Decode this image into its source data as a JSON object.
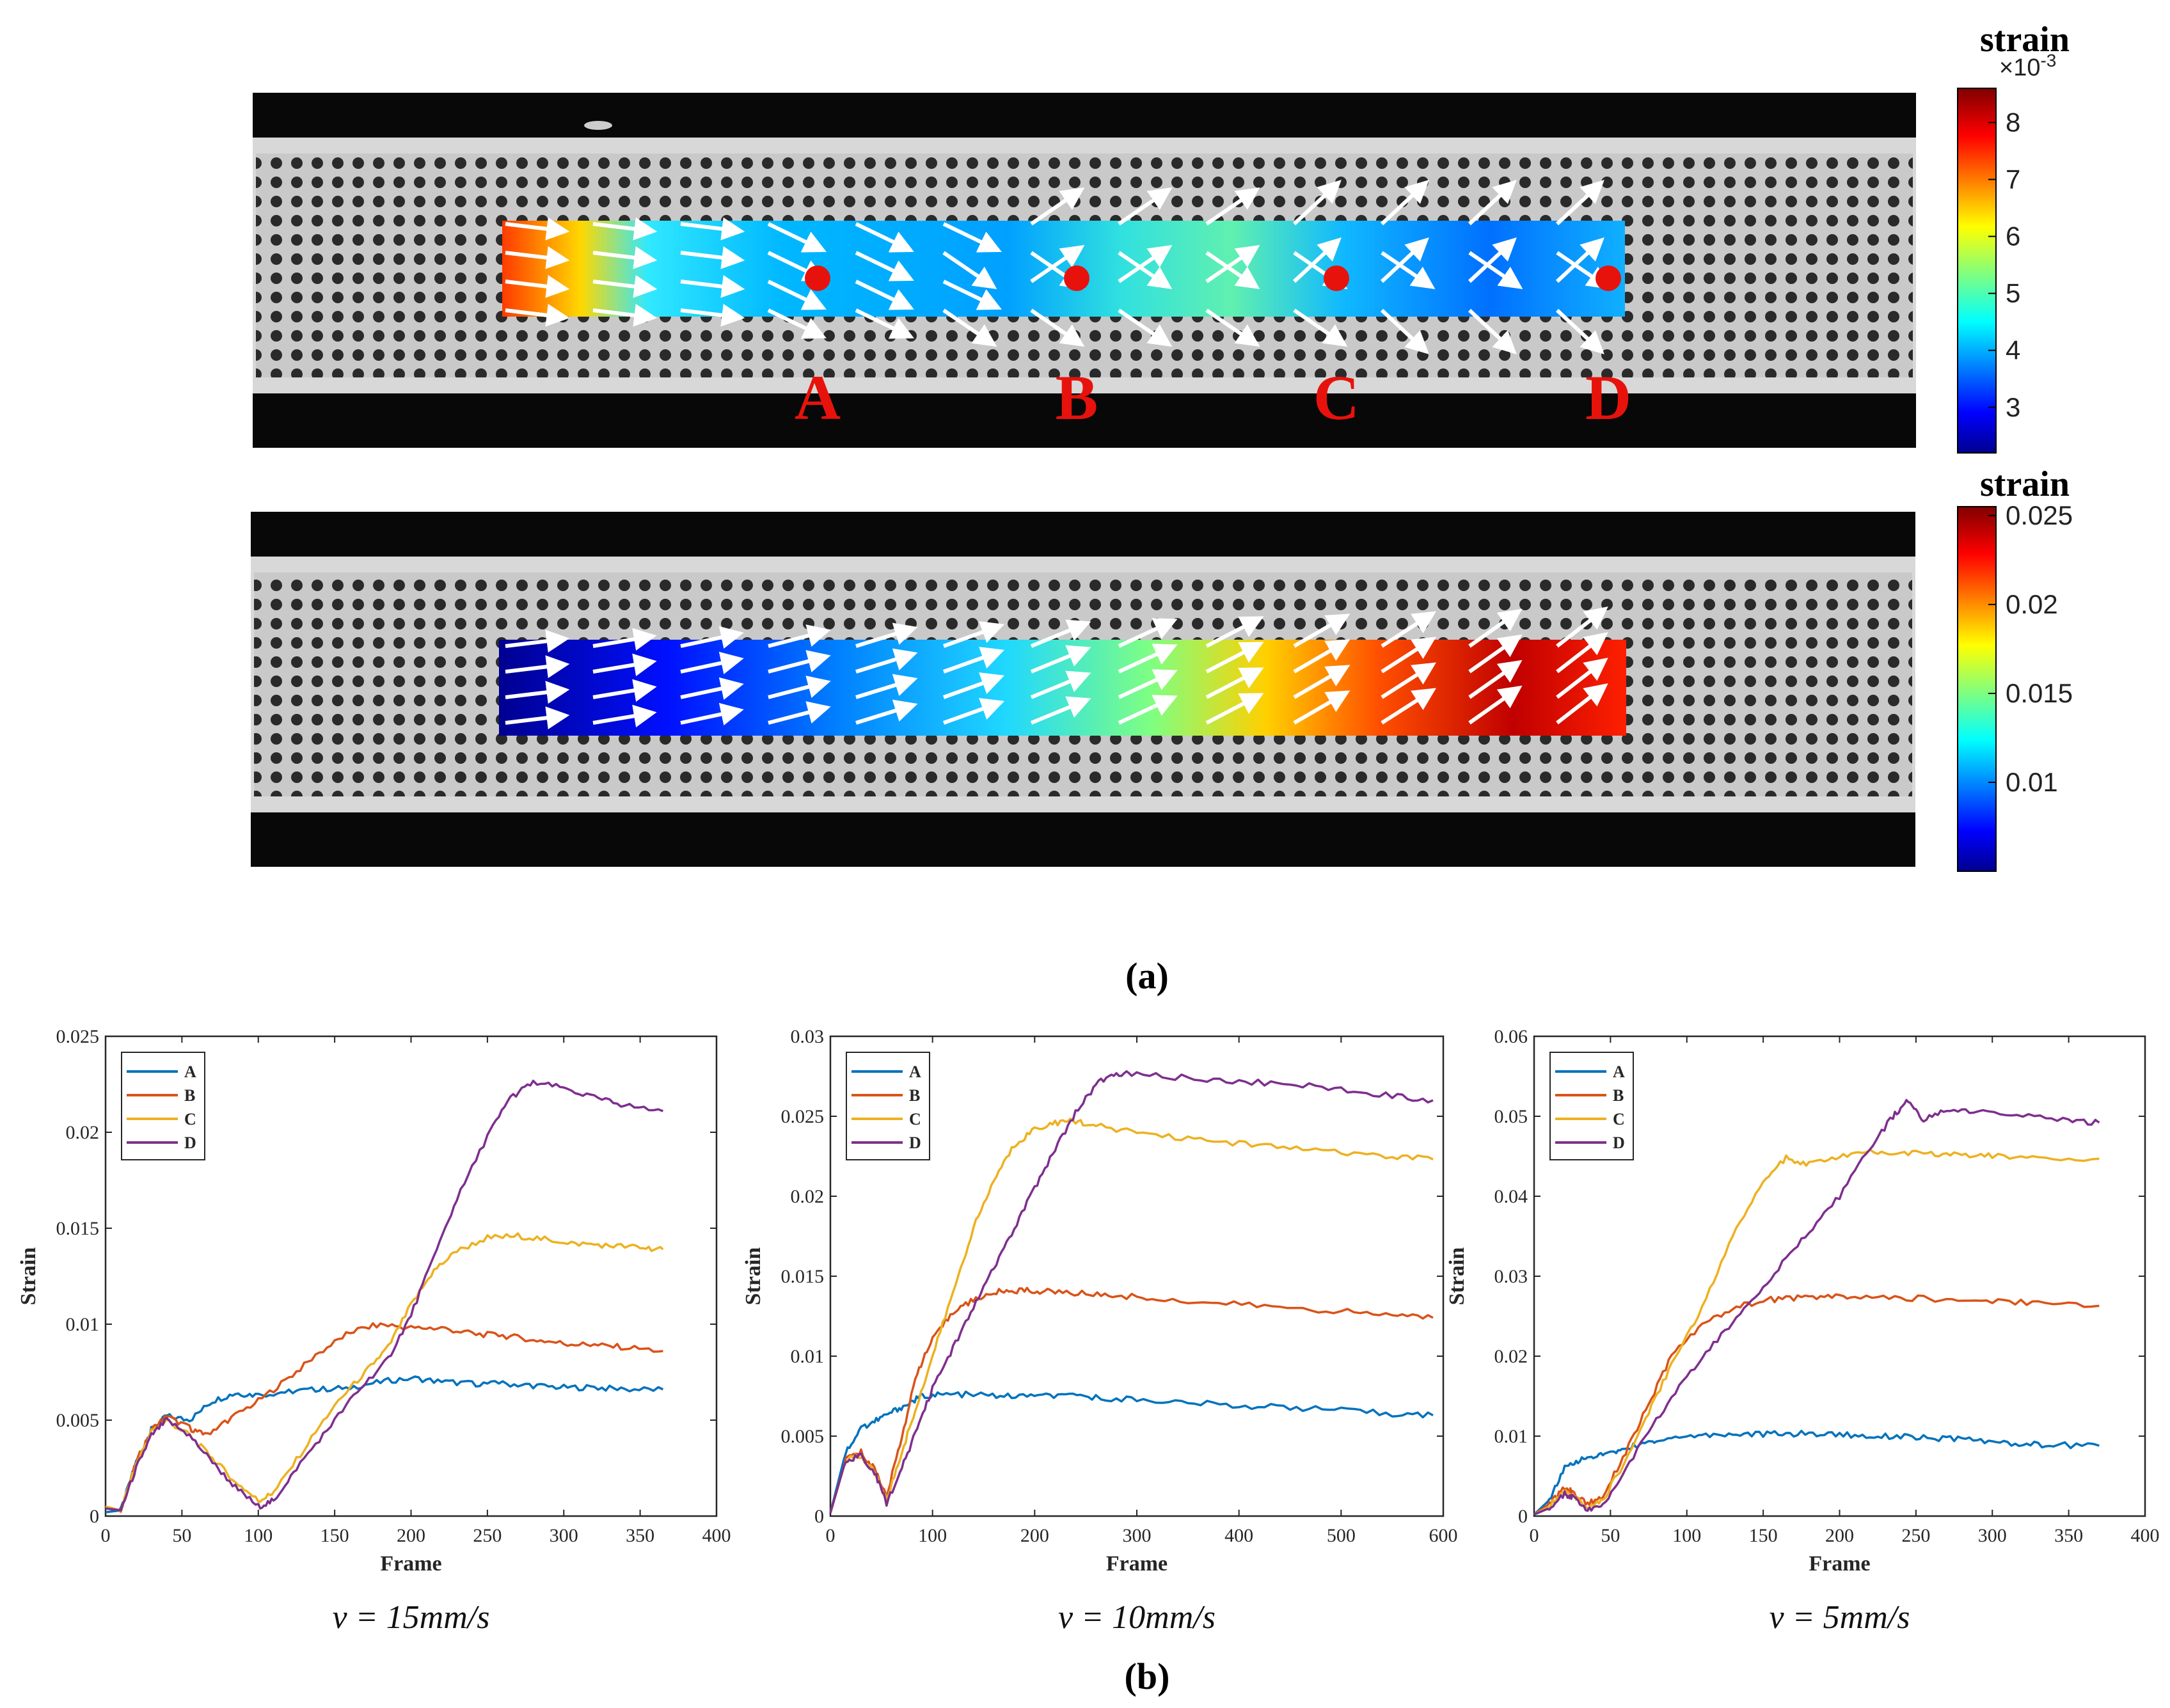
{
  "figure": {
    "panel_a_label": "(a)",
    "panel_b_label": "(b)"
  },
  "maps": [
    {
      "colorbar_title": "strain",
      "colorbar_exponent": "×10",
      "colorbar_exponent_power": "-3",
      "colorbar_ticks": [
        "3",
        "4",
        "5",
        "6",
        "7",
        "8"
      ],
      "colorbar_range": [
        2.2,
        8.6
      ],
      "colorbar_tick_values": [
        3,
        4,
        5,
        6,
        7,
        8
      ],
      "point_labels": [
        "A",
        "B",
        "C",
        "D"
      ]
    },
    {
      "colorbar_title": "strain",
      "colorbar_ticks": [
        "0.01",
        "0.015",
        "0.02",
        "0.025"
      ],
      "colorbar_range": [
        0.005,
        0.0255
      ],
      "colorbar_tick_values": [
        0.01,
        0.015,
        0.02,
        0.025
      ]
    }
  ],
  "colors": {
    "A": "#0072BD",
    "B": "#D95319",
    "C": "#EDB120",
    "D": "#7E2F8E",
    "marker": "#e8120c"
  },
  "chart_data": [
    {
      "type": "line",
      "caption": "v = 15mm/s",
      "xlabel": "Frame",
      "ylabel": "Strain",
      "xlim": [
        0,
        400
      ],
      "ylim": [
        0,
        0.025
      ],
      "xticks": [
        "0",
        "50",
        "100",
        "150",
        "200",
        "250",
        "300",
        "350",
        "400"
      ],
      "yticks": [
        "0",
        "0.005",
        "0.01",
        "0.015",
        "0.02",
        "0.025"
      ],
      "xtick_values": [
        0,
        50,
        100,
        150,
        200,
        250,
        300,
        350,
        400
      ],
      "ytick_values": [
        0,
        0.005,
        0.01,
        0.015,
        0.02,
        0.025
      ],
      "legend": [
        "A",
        "B",
        "C",
        "D"
      ],
      "series": [
        {
          "name": "A",
          "x": [
            0,
            10,
            20,
            30,
            40,
            55,
            70,
            85,
            100,
            120,
            140,
            160,
            180,
            200,
            220,
            240,
            260,
            280,
            300,
            320,
            340,
            365
          ],
          "y": [
            0.0002,
            0.0003,
            0.0028,
            0.0045,
            0.0052,
            0.005,
            0.006,
            0.0064,
            0.0063,
            0.0065,
            0.0066,
            0.0067,
            0.007,
            0.0072,
            0.007,
            0.0069,
            0.0069,
            0.0068,
            0.0067,
            0.0067,
            0.0066,
            0.0066
          ]
        },
        {
          "name": "B",
          "x": [
            0,
            10,
            20,
            30,
            40,
            55,
            65,
            80,
            100,
            120,
            140,
            160,
            180,
            200,
            220,
            240,
            260,
            280,
            300,
            320,
            340,
            365
          ],
          "y": [
            0.0004,
            0.0003,
            0.0028,
            0.0045,
            0.0052,
            0.0046,
            0.0042,
            0.005,
            0.006,
            0.0072,
            0.0085,
            0.0096,
            0.01,
            0.0098,
            0.0098,
            0.0095,
            0.0094,
            0.0092,
            0.009,
            0.0089,
            0.0088,
            0.0086
          ]
        },
        {
          "name": "C",
          "x": [
            0,
            10,
            20,
            30,
            40,
            55,
            70,
            85,
            100,
            110,
            130,
            150,
            170,
            185,
            200,
            215,
            230,
            250,
            270,
            290,
            310,
            330,
            350,
            365
          ],
          "y": [
            0.0005,
            0.0003,
            0.0027,
            0.0044,
            0.005,
            0.0042,
            0.003,
            0.0018,
            0.0008,
            0.0012,
            0.0035,
            0.0058,
            0.0075,
            0.0088,
            0.011,
            0.0128,
            0.0138,
            0.0145,
            0.0146,
            0.0144,
            0.0142,
            0.0141,
            0.014,
            0.0139
          ]
        },
        {
          "name": "D",
          "x": [
            0,
            10,
            20,
            30,
            40,
            55,
            70,
            85,
            100,
            110,
            125,
            145,
            165,
            185,
            200,
            215,
            230,
            250,
            265,
            280,
            300,
            320,
            340,
            365
          ],
          "y": [
            0.0004,
            0.0003,
            0.0025,
            0.0042,
            0.005,
            0.0042,
            0.0028,
            0.0015,
            0.0005,
            0.0008,
            0.0025,
            0.0045,
            0.0065,
            0.0082,
            0.0105,
            0.0135,
            0.0165,
            0.0198,
            0.0218,
            0.0226,
            0.0223,
            0.0218,
            0.0214,
            0.0211
          ]
        }
      ]
    },
    {
      "type": "line",
      "caption": "v = 10mm/s",
      "xlabel": "Frame",
      "ylabel": "Strain",
      "xlim": [
        0,
        600
      ],
      "ylim": [
        0,
        0.03
      ],
      "xticks": [
        "0",
        "100",
        "200",
        "300",
        "400",
        "500",
        "600"
      ],
      "yticks": [
        "0",
        "0.005",
        "0.01",
        "0.015",
        "0.02",
        "0.025",
        "0.03"
      ],
      "xtick_values": [
        0,
        100,
        200,
        300,
        400,
        500,
        600
      ],
      "ytick_values": [
        0,
        0.005,
        0.01,
        0.015,
        0.02,
        0.025,
        0.03
      ],
      "legend": [
        "A",
        "B",
        "C",
        "D"
      ],
      "series": [
        {
          "name": "A",
          "x": [
            0,
            15,
            30,
            45,
            60,
            75,
            90,
            110,
            140,
            170,
            200,
            230,
            260,
            300,
            350,
            400,
            450,
            500,
            550,
            590
          ],
          "y": [
            0.0002,
            0.004,
            0.0055,
            0.006,
            0.0065,
            0.007,
            0.0075,
            0.0076,
            0.0076,
            0.0075,
            0.0075,
            0.0075,
            0.0074,
            0.0073,
            0.0071,
            0.0069,
            0.0068,
            0.0066,
            0.0064,
            0.0063
          ]
        },
        {
          "name": "B",
          "x": [
            0,
            15,
            30,
            45,
            55,
            70,
            85,
            100,
            120,
            140,
            160,
            180,
            200,
            220,
            250,
            280,
            320,
            380,
            440,
            500,
            550,
            590
          ],
          "y": [
            0.0002,
            0.0035,
            0.004,
            0.0028,
            0.0012,
            0.005,
            0.009,
            0.011,
            0.0128,
            0.0135,
            0.014,
            0.0141,
            0.0141,
            0.014,
            0.0139,
            0.0138,
            0.0136,
            0.0133,
            0.0131,
            0.0128,
            0.0126,
            0.0124
          ]
        },
        {
          "name": "C",
          "x": [
            0,
            15,
            30,
            45,
            55,
            70,
            85,
            100,
            120,
            140,
            160,
            180,
            200,
            220,
            240,
            260,
            300,
            350,
            400,
            450,
            500,
            550,
            590
          ],
          "y": [
            0.0002,
            0.0035,
            0.0038,
            0.0025,
            0.001,
            0.004,
            0.007,
            0.01,
            0.014,
            0.018,
            0.021,
            0.0232,
            0.0242,
            0.0246,
            0.0247,
            0.0244,
            0.024,
            0.0236,
            0.0233,
            0.023,
            0.0227,
            0.0225,
            0.0223
          ]
        },
        {
          "name": "D",
          "x": [
            0,
            15,
            30,
            45,
            55,
            70,
            85,
            100,
            120,
            140,
            160,
            180,
            200,
            220,
            240,
            260,
            280,
            300,
            350,
            400,
            450,
            500,
            550,
            590
          ],
          "y": [
            0.0002,
            0.0035,
            0.0038,
            0.0025,
            0.0008,
            0.003,
            0.0055,
            0.008,
            0.0105,
            0.013,
            0.0155,
            0.018,
            0.0205,
            0.023,
            0.0252,
            0.027,
            0.0277,
            0.0276,
            0.0274,
            0.0272,
            0.027,
            0.0267,
            0.0263,
            0.026
          ]
        }
      ]
    },
    {
      "type": "line",
      "caption": "v = 5mm/s",
      "xlabel": "Frame",
      "ylabel": "Strain",
      "xlim": [
        0,
        400
      ],
      "ylim": [
        0,
        0.06
      ],
      "xticks": [
        "0",
        "50",
        "100",
        "150",
        "200",
        "250",
        "300",
        "350",
        "400"
      ],
      "yticks": [
        "0",
        "0.01",
        "0.02",
        "0.03",
        "0.04",
        "0.05",
        "0.06"
      ],
      "xtick_values": [
        0,
        50,
        100,
        150,
        200,
        250,
        300,
        350,
        400
      ],
      "ytick_values": [
        0,
        0.01,
        0.02,
        0.03,
        0.04,
        0.05,
        0.06
      ],
      "legend": [
        "A",
        "B",
        "C",
        "D"
      ],
      "series": [
        {
          "name": "A",
          "x": [
            0,
            10,
            20,
            30,
            40,
            50,
            60,
            70,
            80,
            100,
            120,
            140,
            160,
            180,
            200,
            220,
            240,
            260,
            280,
            300,
            320,
            340,
            370
          ],
          "y": [
            0.0002,
            0.002,
            0.006,
            0.007,
            0.0075,
            0.0078,
            0.0085,
            0.009,
            0.0095,
            0.01,
            0.0102,
            0.0102,
            0.0103,
            0.0103,
            0.0102,
            0.01,
            0.01,
            0.0097,
            0.0096,
            0.0093,
            0.009,
            0.0089,
            0.0088
          ]
        },
        {
          "name": "B",
          "x": [
            0,
            10,
            20,
            25,
            35,
            45,
            60,
            75,
            90,
            110,
            130,
            150,
            170,
            190,
            210,
            240,
            270,
            300,
            330,
            370
          ],
          "y": [
            0.0002,
            0.0015,
            0.0035,
            0.003,
            0.0015,
            0.0025,
            0.008,
            0.014,
            0.02,
            0.024,
            0.026,
            0.027,
            0.0273,
            0.0274,
            0.0274,
            0.0273,
            0.0271,
            0.0269,
            0.0267,
            0.0263
          ]
        },
        {
          "name": "C",
          "x": [
            0,
            10,
            20,
            25,
            35,
            45,
            60,
            75,
            90,
            110,
            130,
            150,
            165,
            180,
            200,
            220,
            240,
            260,
            280,
            300,
            330,
            370
          ],
          "y": [
            0.0002,
            0.0012,
            0.003,
            0.0025,
            0.001,
            0.002,
            0.007,
            0.013,
            0.019,
            0.026,
            0.035,
            0.042,
            0.0448,
            0.044,
            0.045,
            0.0455,
            0.0455,
            0.0453,
            0.0452,
            0.045,
            0.0449,
            0.0447
          ]
        },
        {
          "name": "D",
          "x": [
            0,
            10,
            20,
            25,
            35,
            45,
            60,
            80,
            100,
            120,
            140,
            160,
            180,
            200,
            220,
            235,
            245,
            255,
            270,
            290,
            320,
            350,
            370
          ],
          "y": [
            0.0002,
            0.001,
            0.0028,
            0.0024,
            0.0008,
            0.0012,
            0.006,
            0.012,
            0.0175,
            0.022,
            0.0265,
            0.031,
            0.0355,
            0.04,
            0.046,
            0.05,
            0.052,
            0.0495,
            0.051,
            0.0505,
            0.05,
            0.0495,
            0.0492
          ]
        }
      ]
    }
  ]
}
